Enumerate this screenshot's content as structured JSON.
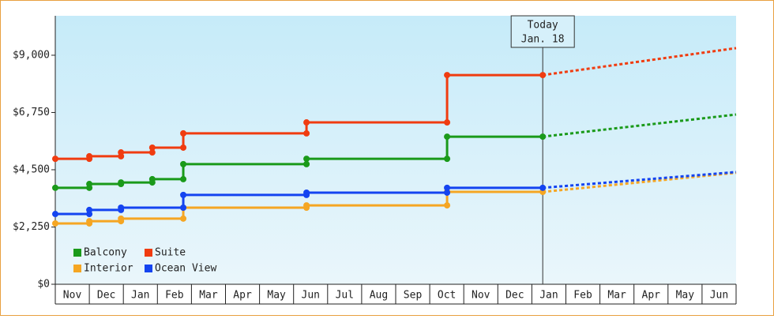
{
  "chart_data": {
    "type": "line",
    "today": {
      "x": 14.32,
      "label": [
        "Today",
        "Jan. 18"
      ]
    },
    "xlim": [
      0,
      20
    ],
    "xticks": [
      {
        "value": 0.5,
        "label": "Nov"
      },
      {
        "value": 1.5,
        "label": "Dec"
      },
      {
        "value": 2.5,
        "label": "Jan"
      },
      {
        "value": 3.5,
        "label": "Feb"
      },
      {
        "value": 4.5,
        "label": "Mar"
      },
      {
        "value": 5.5,
        "label": "Apr"
      },
      {
        "value": 6.5,
        "label": "May"
      },
      {
        "value": 7.5,
        "label": "Jun"
      },
      {
        "value": 8.5,
        "label": "Jul"
      },
      {
        "value": 9.5,
        "label": "Aug"
      },
      {
        "value": 10.5,
        "label": "Sep"
      },
      {
        "value": 11.5,
        "label": "Oct"
      },
      {
        "value": 12.5,
        "label": "Nov"
      },
      {
        "value": 13.5,
        "label": "Dec"
      },
      {
        "value": 14.5,
        "label": "Jan"
      },
      {
        "value": 15.5,
        "label": "Feb"
      },
      {
        "value": 16.5,
        "label": "Mar"
      },
      {
        "value": 17.5,
        "label": "Apr"
      },
      {
        "value": 18.5,
        "label": "May"
      },
      {
        "value": 19.5,
        "label": "Jun"
      }
    ],
    "ylim": [
      0,
      10550
    ],
    "yticks": [
      {
        "value": 0,
        "label": "$0"
      },
      {
        "value": 2250,
        "label": "$2,250"
      },
      {
        "value": 4500,
        "label": "$4,500"
      },
      {
        "value": 6750,
        "label": "$6,750"
      },
      {
        "value": 9000,
        "label": "$9,000"
      }
    ],
    "series": [
      {
        "name": "Balcony",
        "color": "#1a9a1a",
        "x": [
          0,
          1.0,
          1.0,
          1.93,
          1.93,
          2.85,
          2.85,
          3.76,
          3.76,
          7.38,
          7.38,
          11.51,
          11.51,
          14.32,
          20.0
        ],
        "values": [
          3790,
          3790,
          3940,
          3940,
          4000,
          4000,
          4130,
          4130,
          4720,
          4720,
          4930,
          4930,
          5800,
          5800,
          6670
        ]
      },
      {
        "name": "Suite",
        "color": "#f03c10",
        "x": [
          0,
          1.0,
          1.0,
          1.93,
          1.93,
          2.85,
          2.85,
          3.76,
          3.76,
          7.38,
          7.38,
          11.51,
          11.51,
          14.32,
          20.0
        ],
        "values": [
          4930,
          4930,
          5030,
          5030,
          5180,
          5180,
          5370,
          5370,
          5930,
          5930,
          6360,
          6360,
          8220,
          8220,
          9280
        ]
      },
      {
        "name": "Interior",
        "color": "#f5a623",
        "x": [
          0,
          1.0,
          1.0,
          1.93,
          1.93,
          3.76,
          3.76,
          7.38,
          7.38,
          11.51,
          11.51,
          14.32,
          20.0
        ],
        "values": [
          2390,
          2390,
          2480,
          2480,
          2580,
          2580,
          3010,
          3010,
          3100,
          3100,
          3630,
          3630,
          4380
        ]
      },
      {
        "name": "Ocean View",
        "color": "#1444f0",
        "x": [
          0,
          1.0,
          1.0,
          1.93,
          1.93,
          3.76,
          3.76,
          7.38,
          7.38,
          11.51,
          11.51,
          14.32,
          20.0
        ],
        "values": [
          2760,
          2760,
          2920,
          2920,
          3010,
          3010,
          3510,
          3510,
          3600,
          3600,
          3790,
          3790,
          4410
        ]
      }
    ]
  }
}
